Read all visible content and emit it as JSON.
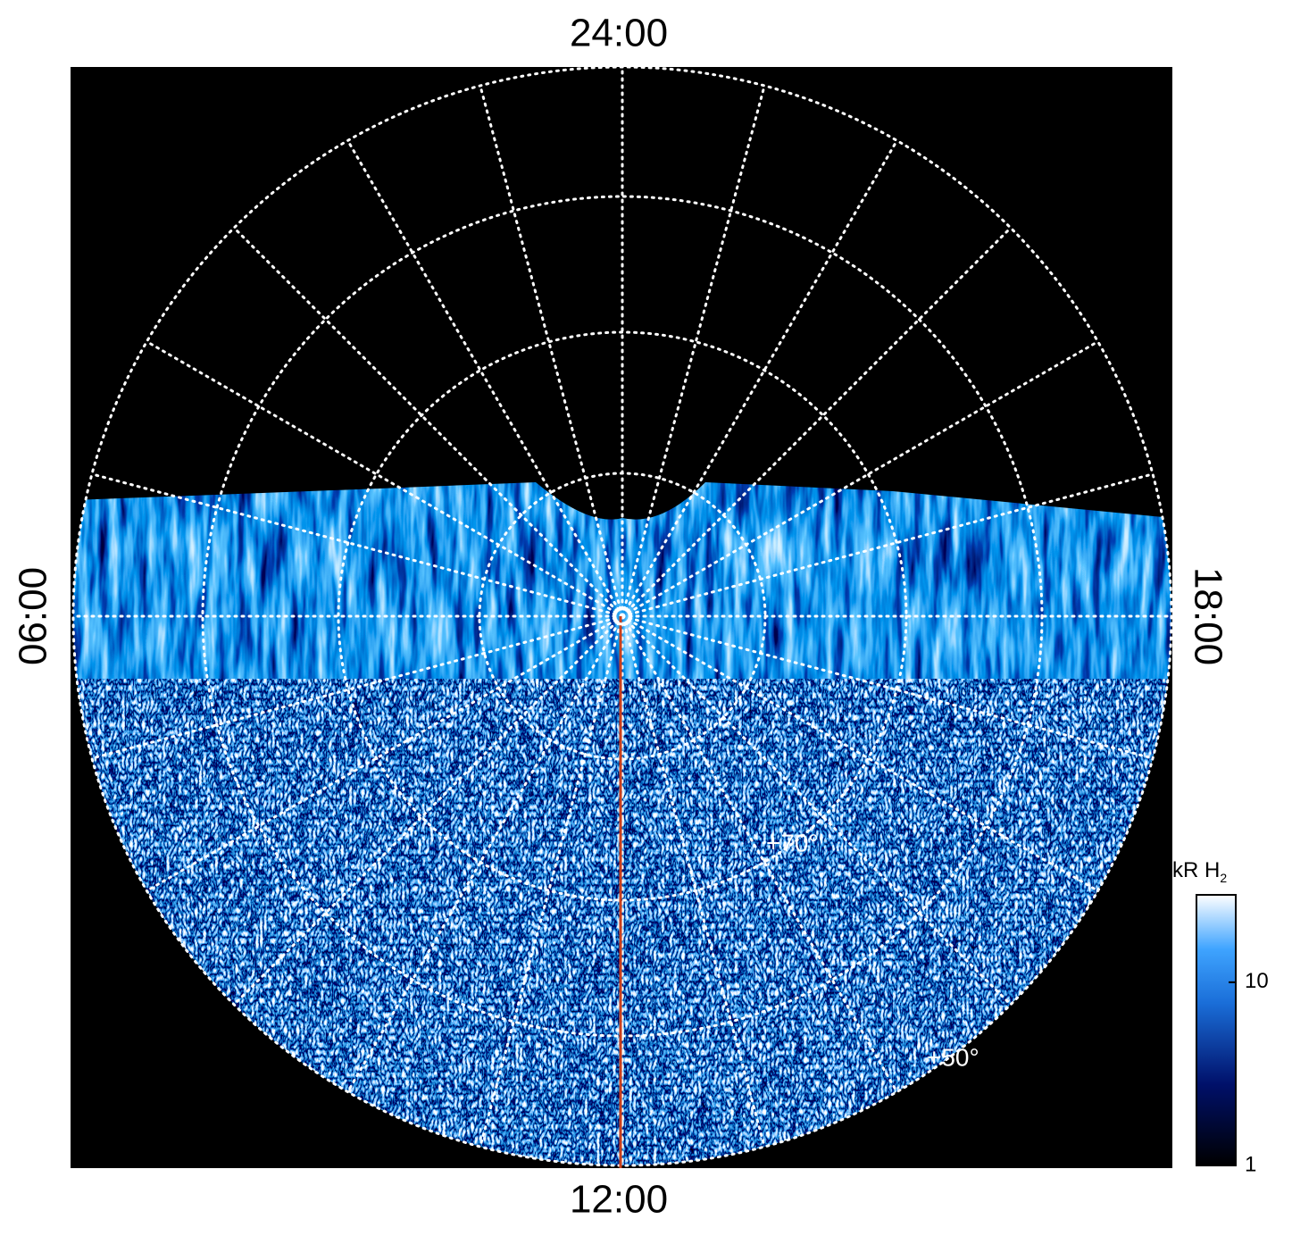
{
  "time_labels": {
    "top": "24:00",
    "left": "06:00",
    "right": "18:00",
    "bottom": "12:00"
  },
  "latitude_labels": [
    "+70°",
    "+50°"
  ],
  "colorbar": {
    "title": "kR H",
    "title_subscript": "2",
    "ticks": [
      1,
      10
    ],
    "lim": [
      1,
      30
    ],
    "log": true
  }
}
